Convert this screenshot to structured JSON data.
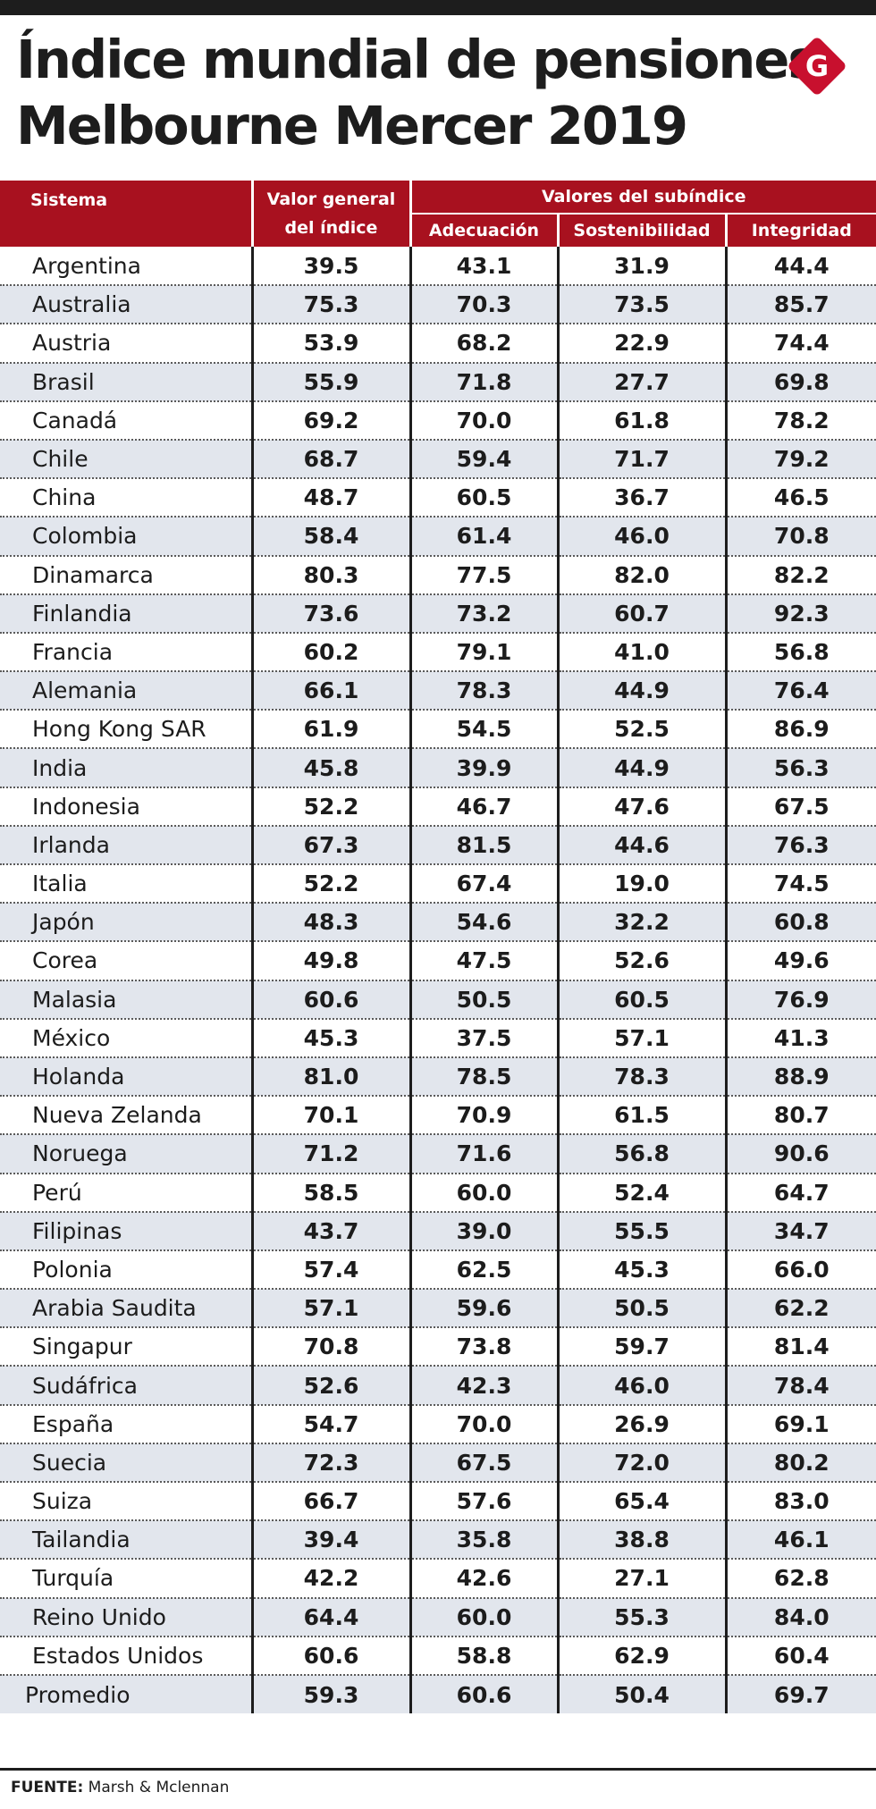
{
  "title_line1": "Índice mundial de pensiones",
  "title_line2": "Melbourne Mercer 2019",
  "logo_letter": "G",
  "colors": {
    "header_red": "#a8111f",
    "stripe": "#e2e6ed",
    "logo_red": "#c8102e"
  },
  "header": {
    "sistema": "Sistema",
    "valor_line1": "Valor general",
    "valor_line2": "del índice",
    "group": "Valores del subíndice",
    "adecuacion": "Adecuación",
    "sostenibilidad": "Sostenibilidad",
    "integridad": "Integridad"
  },
  "rows": [
    {
      "sistema": "Argentina",
      "valor": "39.5",
      "adecuacion": "43.1",
      "sostenibilidad": "31.9",
      "integridad": "44.4"
    },
    {
      "sistema": "Australia",
      "valor": "75.3",
      "adecuacion": "70.3",
      "sostenibilidad": "73.5",
      "integridad": "85.7"
    },
    {
      "sistema": "Austria",
      "valor": "53.9",
      "adecuacion": "68.2",
      "sostenibilidad": "22.9",
      "integridad": "74.4"
    },
    {
      "sistema": "Brasil",
      "valor": "55.9",
      "adecuacion": "71.8",
      "sostenibilidad": "27.7",
      "integridad": "69.8"
    },
    {
      "sistema": "Canadá",
      "valor": "69.2",
      "adecuacion": "70.0",
      "sostenibilidad": "61.8",
      "integridad": "78.2"
    },
    {
      "sistema": "Chile",
      "valor": "68.7",
      "adecuacion": "59.4",
      "sostenibilidad": "71.7",
      "integridad": "79.2"
    },
    {
      "sistema": "China",
      "valor": "48.7",
      "adecuacion": "60.5",
      "sostenibilidad": "36.7",
      "integridad": "46.5"
    },
    {
      "sistema": "Colombia",
      "valor": "58.4",
      "adecuacion": "61.4",
      "sostenibilidad": "46.0",
      "integridad": "70.8"
    },
    {
      "sistema": "Dinamarca",
      "valor": "80.3",
      "adecuacion": "77.5",
      "sostenibilidad": "82.0",
      "integridad": "82.2"
    },
    {
      "sistema": "Finlandia",
      "valor": "73.6",
      "adecuacion": "73.2",
      "sostenibilidad": "60.7",
      "integridad": "92.3"
    },
    {
      "sistema": "Francia",
      "valor": "60.2",
      "adecuacion": "79.1",
      "sostenibilidad": "41.0",
      "integridad": "56.8"
    },
    {
      "sistema": "Alemania",
      "valor": "66.1",
      "adecuacion": "78.3",
      "sostenibilidad": "44.9",
      "integridad": "76.4"
    },
    {
      "sistema": "Hong Kong SAR",
      "valor": "61.9",
      "adecuacion": "54.5",
      "sostenibilidad": "52.5",
      "integridad": "86.9"
    },
    {
      "sistema": "India",
      "valor": "45.8",
      "adecuacion": "39.9",
      "sostenibilidad": "44.9",
      "integridad": "56.3"
    },
    {
      "sistema": "Indonesia",
      "valor": "52.2",
      "adecuacion": "46.7",
      "sostenibilidad": "47.6",
      "integridad": "67.5"
    },
    {
      "sistema": "Irlanda",
      "valor": "67.3",
      "adecuacion": "81.5",
      "sostenibilidad": "44.6",
      "integridad": "76.3"
    },
    {
      "sistema": "Italia",
      "valor": "52.2",
      "adecuacion": "67.4",
      "sostenibilidad": "19.0",
      "integridad": "74.5"
    },
    {
      "sistema": "Japón",
      "valor": "48.3",
      "adecuacion": "54.6",
      "sostenibilidad": "32.2",
      "integridad": "60.8"
    },
    {
      "sistema": "Corea",
      "valor": "49.8",
      "adecuacion": "47.5",
      "sostenibilidad": "52.6",
      "integridad": "49.6"
    },
    {
      "sistema": "Malasia",
      "valor": "60.6",
      "adecuacion": "50.5",
      "sostenibilidad": "60.5",
      "integridad": "76.9"
    },
    {
      "sistema": "México",
      "valor": "45.3",
      "adecuacion": "37.5",
      "sostenibilidad": "57.1",
      "integridad": "41.3"
    },
    {
      "sistema": "Holanda",
      "valor": "81.0",
      "adecuacion": "78.5",
      "sostenibilidad": "78.3",
      "integridad": "88.9"
    },
    {
      "sistema": "Nueva Zelanda",
      "valor": "70.1",
      "adecuacion": "70.9",
      "sostenibilidad": "61.5",
      "integridad": "80.7"
    },
    {
      "sistema": "Noruega",
      "valor": "71.2",
      "adecuacion": "71.6",
      "sostenibilidad": "56.8",
      "integridad": "90.6"
    },
    {
      "sistema": "Perú",
      "valor": "58.5",
      "adecuacion": "60.0",
      "sostenibilidad": "52.4",
      "integridad": "64.7"
    },
    {
      "sistema": "Filipinas",
      "valor": "43.7",
      "adecuacion": "39.0",
      "sostenibilidad": "55.5",
      "integridad": "34.7"
    },
    {
      "sistema": "Polonia",
      "valor": "57.4",
      "adecuacion": "62.5",
      "sostenibilidad": "45.3",
      "integridad": "66.0"
    },
    {
      "sistema": "Arabia Saudita",
      "valor": "57.1",
      "adecuacion": "59.6",
      "sostenibilidad": "50.5",
      "integridad": "62.2"
    },
    {
      "sistema": "Singapur",
      "valor": "70.8",
      "adecuacion": "73.8",
      "sostenibilidad": "59.7",
      "integridad": "81.4"
    },
    {
      "sistema": "Sudáfrica",
      "valor": "52.6",
      "adecuacion": "42.3",
      "sostenibilidad": "46.0",
      "integridad": "78.4"
    },
    {
      "sistema": "España",
      "valor": "54.7",
      "adecuacion": "70.0",
      "sostenibilidad": "26.9",
      "integridad": "69.1"
    },
    {
      "sistema": "Suecia",
      "valor": "72.3",
      "adecuacion": "67.5",
      "sostenibilidad": "72.0",
      "integridad": "80.2"
    },
    {
      "sistema": "Suiza",
      "valor": "66.7",
      "adecuacion": "57.6",
      "sostenibilidad": "65.4",
      "integridad": "83.0"
    },
    {
      "sistema": "Tailandia",
      "valor": "39.4",
      "adecuacion": "35.8",
      "sostenibilidad": "38.8",
      "integridad": "46.1"
    },
    {
      "sistema": "Turquía",
      "valor": "42.2",
      "adecuacion": "42.6",
      "sostenibilidad": "27.1",
      "integridad": "62.8"
    },
    {
      "sistema": "Reino Unido",
      "valor": "64.4",
      "adecuacion": "60.0",
      "sostenibilidad": "55.3",
      "integridad": "84.0"
    },
    {
      "sistema": "Estados Unidos",
      "valor": "60.6",
      "adecuacion": "58.8",
      "sostenibilidad": "62.9",
      "integridad": "60.4"
    },
    {
      "sistema": "Promedio",
      "valor": "59.3",
      "adecuacion": "60.6",
      "sostenibilidad": "50.4",
      "integridad": "69.7"
    }
  ],
  "source_label": "FUENTE:",
  "source_text": " Marsh & Mclennan"
}
